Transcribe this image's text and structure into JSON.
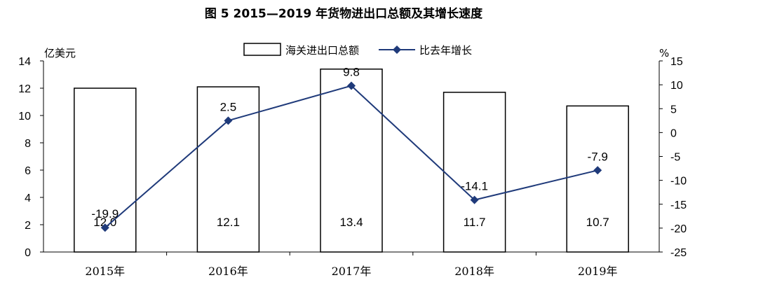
{
  "chart_data": {
    "type": "bar+line",
    "title": "图 5  2015—2019 年货物进出口总额及其增长速度",
    "categories": [
      "2015年",
      "2016年",
      "2017年",
      "2018年",
      "2019年"
    ],
    "series": [
      {
        "name": "海关进出口总额",
        "type": "bar",
        "axis": "left",
        "values": [
          12.0,
          12.1,
          13.4,
          11.7,
          10.7
        ],
        "labels": [
          "12.0",
          "12.1",
          "13.4",
          "11.7",
          "10.7"
        ],
        "color": "#ffffff",
        "stroke": "#000000"
      },
      {
        "name": "比去年增长",
        "type": "line",
        "axis": "right",
        "values": [
          -19.9,
          2.5,
          9.8,
          -14.1,
          -7.9
        ],
        "labels": [
          "-19.9",
          "2.5",
          "9.8",
          "-14.1",
          "-7.9"
        ],
        "color": "#1f3a7a",
        "marker": "diamond"
      }
    ],
    "y_left": {
      "label": "亿美元",
      "min": 0,
      "max": 14,
      "ticks": [
        "0",
        "2",
        "4",
        "6",
        "8",
        "10",
        "12",
        "14"
      ]
    },
    "y_right": {
      "label": "%",
      "min": -25,
      "max": 15,
      "ticks": [
        "15",
        "10",
        "5",
        "0",
        "-5",
        "-10",
        "-15",
        "-20",
        "-25"
      ]
    },
    "legend_position": "top-center",
    "grid": false
  }
}
